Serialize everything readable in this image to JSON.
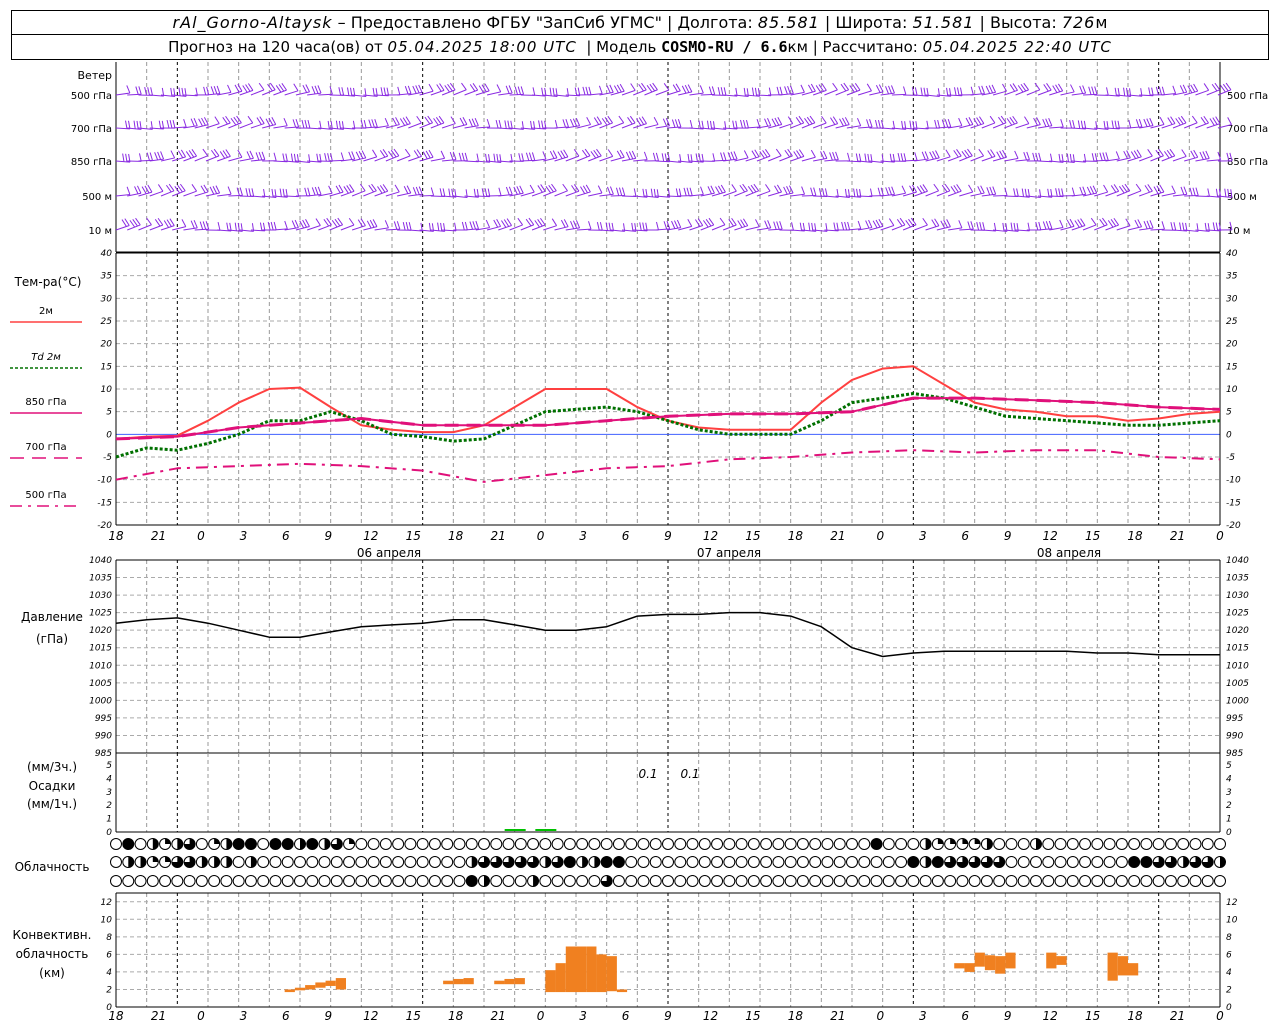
{
  "header": {
    "station": "rAl_Gorno-Altaysk",
    "provider": "– Предоставлено ФГБУ \"ЗапСиб УГМС\"",
    "lon_label": "Долгота:",
    "lon": "85.581",
    "lat_label": "Широта:",
    "lat": "51.581",
    "alt_label": "Высота:",
    "alt": "726",
    "alt_unit": "м",
    "forecast_prefix": "Прогноз на 120 часа(ов) от",
    "forecast_from": "05.04.2025 18:00 UTC",
    "model_label": "Модель",
    "model": "COSMO-RU / 6.6",
    "model_unit": "км",
    "calc_label": "Рассчитано:",
    "calc": "05.04.2025 22:40 UTC"
  },
  "wind_panel": {
    "title": "Ветер",
    "levels": [
      "500 гПа",
      "700 гПа",
      "850 гПа",
      "500 м",
      "10 м"
    ],
    "color": "#8a2be2"
  },
  "temp_panel": {
    "title": "Тем-ра(°C)",
    "legend": [
      {
        "label": "2м",
        "color": "#ff4040",
        "style": "solid"
      },
      {
        "label": "Td 2м",
        "color": "#007000",
        "style": "dotted"
      },
      {
        "label": "850 гПа",
        "color": "#e0107a",
        "style": "solid"
      },
      {
        "label": "700 гПа",
        "color": "#e0107a",
        "style": "dash"
      },
      {
        "label": "500 гПа",
        "color": "#e0107a",
        "style": "dashdot"
      }
    ],
    "yticks": [
      "40",
      "35",
      "30",
      "25",
      "20",
      "15",
      "10",
      "5",
      "0",
      "-5",
      "-10",
      "-15",
      "-20"
    ]
  },
  "pressure_panel": {
    "title": "Давление",
    "unit": "(гПа)",
    "yticks": [
      "1040",
      "1035",
      "1030",
      "1025",
      "1020",
      "1015",
      "1010",
      "1005",
      "1000",
      "995",
      "990",
      "985"
    ]
  },
  "precip_panel": {
    "unit_top": "(мм/3ч.)",
    "title": "Осадки",
    "unit_bottom": "(мм/1ч.)",
    "yticks": [
      "5",
      "4",
      "3",
      "2",
      "1",
      "0"
    ],
    "labels": [
      "0.1",
      "0.1"
    ],
    "color": "#00c000"
  },
  "cloud_panel": {
    "title": "Облачность"
  },
  "conv_panel": {
    "title_1": "Конвективн.",
    "title_2": "облачность",
    "unit": "(км)",
    "yticks": [
      "12",
      "10",
      "8",
      "6",
      "4",
      "2",
      "0"
    ],
    "color": "#f08020"
  },
  "x_axis": {
    "hour_labels": [
      "18",
      "21",
      "0",
      "3",
      "6",
      "9",
      "12",
      "15",
      "18",
      "21",
      "0",
      "3",
      "6",
      "9",
      "12",
      "15",
      "18",
      "21",
      "0",
      "3",
      "6",
      "9",
      "12",
      "15",
      "18",
      "21",
      "0"
    ],
    "day_labels": [
      "06 апреля",
      "07 апреля",
      "08 апреля"
    ]
  },
  "chart_data": {
    "type": "line",
    "x_unit": "hours since 05.04.2025 18:00 UTC",
    "temperature": {
      "ylim": [
        -20,
        40
      ],
      "series": [
        {
          "name": "2м",
          "x": [
            0,
            3,
            6,
            9,
            12,
            15,
            18,
            21,
            24,
            27,
            30,
            33,
            36,
            39,
            42,
            45,
            48,
            51,
            54,
            57,
            60,
            63,
            66,
            69,
            72,
            75,
            78,
            81,
            84,
            87,
            90,
            93,
            96,
            99,
            102,
            105,
            108
          ],
          "values": [
            -1,
            -0.5,
            -0.3,
            3,
            7,
            10,
            10.3,
            6,
            2,
            1,
            0.5,
            0.5,
            2,
            6,
            10,
            10,
            10,
            6,
            3,
            1.5,
            1,
            1,
            1,
            7,
            12,
            14.5,
            15,
            11,
            7,
            5.5,
            5,
            4,
            4,
            3,
            3.5,
            4.5,
            5
          ]
        },
        {
          "name": "Td 2м",
          "x": [
            0,
            3,
            6,
            9,
            12,
            15,
            18,
            21,
            24,
            27,
            30,
            33,
            36,
            39,
            42,
            45,
            48,
            51,
            54,
            57,
            60,
            63,
            66,
            69,
            72,
            75,
            78,
            81,
            84,
            87,
            90,
            93,
            96,
            99,
            102,
            105,
            108
          ],
          "values": [
            -5,
            -3,
            -3.5,
            -2,
            0,
            3,
            3,
            5,
            3,
            0,
            -0.5,
            -1.5,
            -1,
            2,
            5,
            5.5,
            6,
            5,
            3,
            1,
            0,
            0,
            0,
            3,
            7,
            8,
            9,
            8,
            6,
            4,
            3.5,
            3,
            2.5,
            2,
            2,
            2.5,
            3
          ]
        },
        {
          "name": "850 гПа",
          "x": [
            0,
            6,
            12,
            18,
            24,
            30,
            36,
            42,
            48,
            54,
            60,
            66,
            72,
            78,
            84,
            90,
            96,
            102,
            108
          ],
          "values": [
            -1,
            -0.5,
            1.5,
            2.5,
            3.5,
            2,
            2,
            2,
            3,
            4,
            4.5,
            4.5,
            5,
            8,
            8,
            7.5,
            7,
            6,
            5.5
          ]
        },
        {
          "name": "700 гПа",
          "x": [
            0,
            6,
            12,
            18,
            24,
            30,
            36,
            42,
            48,
            54,
            60,
            66,
            72,
            78,
            84,
            90,
            96,
            102,
            108
          ],
          "values": [
            -1,
            -0.5,
            1.5,
            2.5,
            3.5,
            2,
            2,
            2,
            3,
            4,
            4.5,
            4.5,
            5,
            8,
            8,
            7.5,
            7,
            6,
            5.5
          ]
        },
        {
          "name": "500 гПа",
          "x": [
            0,
            6,
            12,
            18,
            24,
            30,
            36,
            42,
            48,
            54,
            60,
            66,
            72,
            78,
            84,
            90,
            96,
            102,
            108
          ],
          "values": [
            -10,
            -7.5,
            -7,
            -6.5,
            -7,
            -8,
            -10.5,
            -9,
            -7.5,
            -7,
            -5.5,
            -5,
            -4,
            -3.5,
            -4,
            -3.5,
            -3.5,
            -5,
            -5.5
          ]
        }
      ]
    },
    "pressure": {
      "ylim": [
        985,
        1040
      ],
      "series": [
        {
          "name": "Давление",
          "x": [
            0,
            3,
            6,
            9,
            12,
            15,
            18,
            21,
            24,
            27,
            30,
            33,
            36,
            39,
            42,
            45,
            48,
            51,
            54,
            57,
            60,
            63,
            66,
            69,
            72,
            75,
            78,
            81,
            84,
            87,
            90,
            93,
            96,
            99,
            102,
            105,
            108
          ],
          "values": [
            1022,
            1023,
            1023.5,
            1022,
            1020,
            1018,
            1018,
            1019.5,
            1021,
            1021.5,
            1022,
            1023,
            1023,
            1021.5,
            1020,
            1020,
            1021,
            1024,
            1024.5,
            1024.5,
            1025,
            1025,
            1024,
            1021,
            1015,
            1012.5,
            1013.5,
            1014,
            1014,
            1014,
            1014,
            1014,
            1013.5,
            1013.5,
            1013,
            1013,
            1013
          ]
        }
      ]
    },
    "precipitation": {
      "ylim": [
        0,
        5
      ],
      "bars": [
        {
          "x": 39,
          "value": 0.1
        },
        {
          "x": 42,
          "value": 0.1
        }
      ]
    },
    "convective_cloud": {
      "ylim": [
        0,
        13
      ],
      "bars": [
        {
          "x0": 16.5,
          "x1": 17.5,
          "bottom": 1.7,
          "top": 2.0
        },
        {
          "x0": 17.5,
          "x1": 18.5,
          "bottom": 1.9,
          "top": 2.2
        },
        {
          "x0": 18.5,
          "x1": 19.5,
          "bottom": 2.0,
          "top": 2.5
        },
        {
          "x0": 19.5,
          "x1": 20.5,
          "bottom": 2.2,
          "top": 2.8
        },
        {
          "x0": 20.5,
          "x1": 21.5,
          "bottom": 2.4,
          "top": 3.0
        },
        {
          "x0": 21.5,
          "x1": 22.5,
          "bottom": 2.0,
          "top": 3.3
        },
        {
          "x0": 32.0,
          "x1": 33.0,
          "bottom": 2.6,
          "top": 3.0
        },
        {
          "x0": 33.0,
          "x1": 34.0,
          "bottom": 2.6,
          "top": 3.2
        },
        {
          "x0": 34.0,
          "x1": 35.0,
          "bottom": 2.6,
          "top": 3.3
        },
        {
          "x0": 37.0,
          "x1": 38.0,
          "bottom": 2.6,
          "top": 3.0
        },
        {
          "x0": 38.0,
          "x1": 39.0,
          "bottom": 2.6,
          "top": 3.2
        },
        {
          "x0": 39.0,
          "x1": 40.0,
          "bottom": 2.6,
          "top": 3.3
        },
        {
          "x0": 42.0,
          "x1": 43.0,
          "bottom": 1.7,
          "top": 4.2
        },
        {
          "x0": 43.0,
          "x1": 44.0,
          "bottom": 1.7,
          "top": 5.0
        },
        {
          "x0": 44.0,
          "x1": 45.0,
          "bottom": 1.7,
          "top": 6.9
        },
        {
          "x0": 45.0,
          "x1": 46.0,
          "bottom": 1.7,
          "top": 6.9
        },
        {
          "x0": 46.0,
          "x1": 47.0,
          "bottom": 1.7,
          "top": 6.9
        },
        {
          "x0": 47.0,
          "x1": 48.0,
          "bottom": 1.7,
          "top": 6.0
        },
        {
          "x0": 48.0,
          "x1": 49.0,
          "bottom": 1.8,
          "top": 5.8
        },
        {
          "x0": 49.0,
          "x1": 50.0,
          "bottom": 1.7,
          "top": 2.0
        },
        {
          "x0": 82.0,
          "x1": 83.0,
          "bottom": 4.4,
          "top": 5.0
        },
        {
          "x0": 83.0,
          "x1": 84.0,
          "bottom": 4.0,
          "top": 5.0
        },
        {
          "x0": 84.0,
          "x1": 85.0,
          "bottom": 4.6,
          "top": 6.2
        },
        {
          "x0": 85.0,
          "x1": 86.0,
          "bottom": 4.2,
          "top": 5.9
        },
        {
          "x0": 86.0,
          "x1": 87.0,
          "bottom": 3.8,
          "top": 5.8
        },
        {
          "x0": 87.0,
          "x1": 88.0,
          "bottom": 4.4,
          "top": 6.2
        },
        {
          "x0": 91.0,
          "x1": 92.0,
          "bottom": 4.4,
          "top": 6.2
        },
        {
          "x0": 92.0,
          "x1": 93.0,
          "bottom": 4.8,
          "top": 5.8
        },
        {
          "x0": 97.0,
          "x1": 98.0,
          "bottom": 3.0,
          "top": 6.2
        },
        {
          "x0": 98.0,
          "x1": 99.0,
          "bottom": 3.6,
          "top": 5.8
        },
        {
          "x0": 99.0,
          "x1": 100.0,
          "bottom": 3.6,
          "top": 5.0
        }
      ]
    },
    "cloud_cover_rows": 3
  }
}
